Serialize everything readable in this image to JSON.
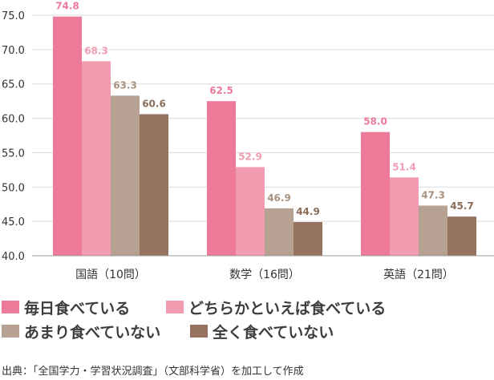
{
  "chart_data": {
    "type": "bar",
    "categories": [
      "国語（10問）",
      "数学（16問）",
      "英語（21問）"
    ],
    "series": [
      {
        "name": "毎日食べている",
        "color": "#ec7a98",
        "label_color": "#ec7a98",
        "values": [
          74.8,
          62.5,
          58.0
        ]
      },
      {
        "name": "どちらかといえば食べている",
        "color": "#f29cb2",
        "label_color": "#f29cb2",
        "values": [
          68.3,
          52.9,
          51.4
        ]
      },
      {
        "name": "あまり食べていない",
        "color": "#b6a193",
        "label_color": "#a8927f",
        "values": [
          63.3,
          46.9,
          47.3
        ]
      },
      {
        "name": "全く食べていない",
        "color": "#96735e",
        "label_color": "#8a6c58",
        "values": [
          60.6,
          44.9,
          45.7
        ]
      }
    ],
    "ylim": [
      40.0,
      75.0
    ],
    "yticks": [
      "75.0",
      "70.0",
      "65.0",
      "60.0",
      "55.0",
      "50.0",
      "45.0",
      "40.0"
    ],
    "grid": true,
    "legend_position": "bottom"
  },
  "source": "出典：「全国学力・学習状況調査」（文部科学省）を加工して作成"
}
